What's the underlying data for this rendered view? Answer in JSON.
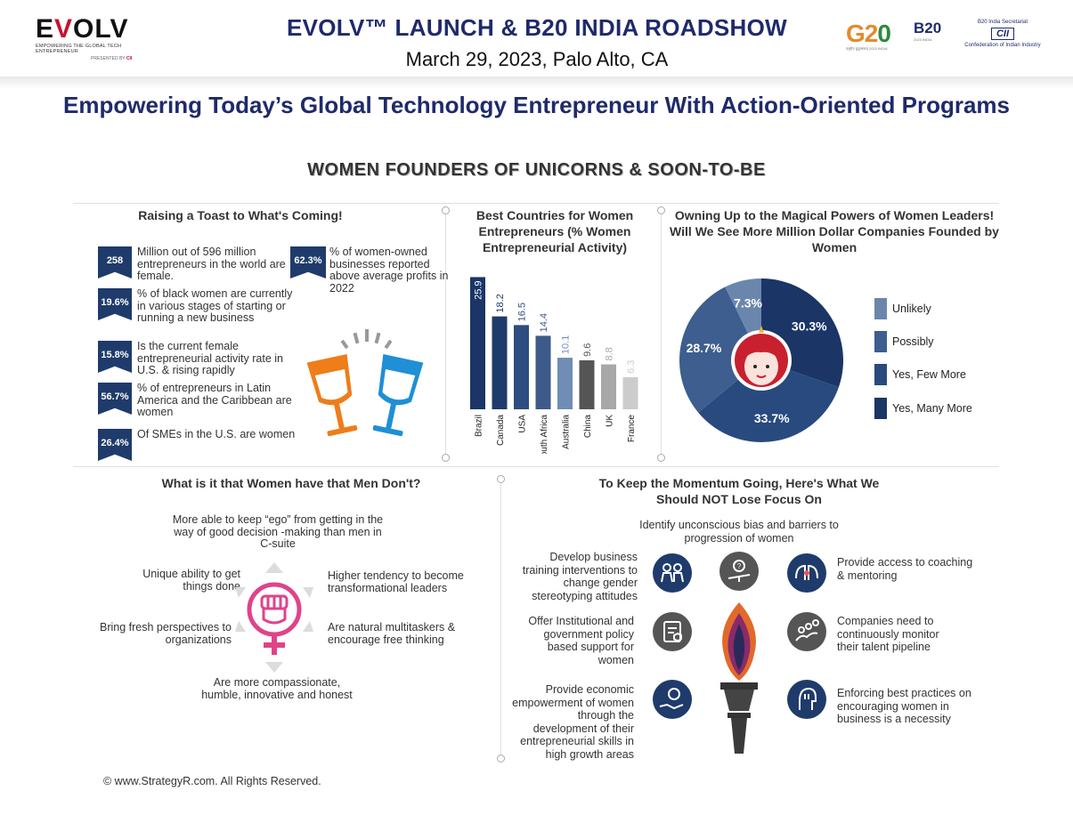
{
  "header": {
    "logo_text": "EVOLV",
    "logo_tagline": "EMPOWERING THE GLOBAL TECH ENTREPRENEUR",
    "logo_presented_by": "PRESENTED BY",
    "logo_presenter": "CII",
    "title": "EVOLV™ LAUNCH & B20 INDIA ROADSHOW",
    "date": "March 29, 2023, Palo Alto, CA",
    "g20_logo": "G20",
    "b20_logo": "B20",
    "cii_top": "B20 India Secretariat",
    "cii_logo": "CII",
    "cii_bottom": "Confederation of Indian Industry"
  },
  "subtitle": "Empowering Today’s Global Technology Entrepreneur With Action-Oriented Programs",
  "infographic_title": "WOMEN FOUNDERS OF UNICORNS & SOON-TO-BE",
  "toast": {
    "heading": "Raising a Toast to What's Coming!",
    "stats": [
      {
        "value": "258",
        "text": "Million out of 596 million entrepreneurs in the world are female."
      },
      {
        "value": "19.6%",
        "text": "% of black women are currently in various stages of starting or running a new business"
      },
      {
        "value": "15.8%",
        "text": "Is the current female entrepreneurial activity rate in U.S. & rising rapidly"
      },
      {
        "value": "56.7%",
        "text": "% of entrepreneurs in Latin America and the Caribbean are women"
      },
      {
        "value": "26.4%",
        "text": "Of SMEs in the U.S. are women"
      }
    ],
    "side_stat": {
      "value": "62.3%",
      "text": "% of women-owned businesses reported above average profits in 2022"
    },
    "icon": "toasting-glasses-icon"
  },
  "chart_data": [
    {
      "type": "bar",
      "title": "Best Countries for Women Entrepreneurs (% Women Entrepreneurial Activity)",
      "categories": [
        "Brazil",
        "Canada",
        "USA",
        "South Africa",
        "Australia",
        "China",
        "UK",
        "France"
      ],
      "values": [
        25.9,
        18.2,
        16.5,
        14.4,
        10.1,
        9.6,
        8.8,
        6.3
      ],
      "value_labels": [
        "25.9",
        "18.2",
        "16.5",
        "14.4",
        "10.1",
        "9.6",
        "8.8",
        "6.3"
      ],
      "colors": [
        "#1a3566",
        "#1f3b6b",
        "#2e4d80",
        "#3d5a8a",
        "#6f8db5",
        "#555555",
        "#a8a8a8",
        "#cccccc"
      ],
      "ylim": [
        0,
        30
      ],
      "grid": false
    },
    {
      "type": "pie",
      "title": "Owning Up to the Magical Powers of Women Leaders! Will We See More Million Dollar Companies Founded by Women",
      "categories": [
        "Unlikely",
        "Possibly",
        "Yes, Few More",
        "Yes, Many More"
      ],
      "values": [
        7.3,
        28.7,
        33.7,
        30.3
      ],
      "value_labels": [
        "7.3%",
        "28.7%",
        "33.7%",
        "30.3%"
      ],
      "colors": [
        "#6b86ad",
        "#3d5e8e",
        "#284a7e",
        "#1a3566"
      ],
      "legend": "right"
    }
  ],
  "women_vs_men": {
    "heading": "What is it that Women have that Men Don't?",
    "items": {
      "top": "More able to keep “ego” from getting in the way of good decision -making than men in C-suite",
      "top_left": "Unique ability to get things done",
      "top_right": "Higher tendency to become transformational leaders",
      "bottom_left": "Bring fresh perspectives to organizations",
      "bottom_right": "Are natural multitaskers & encourage free thinking",
      "bottom": "Are more compassionate, humble, innovative and honest"
    },
    "icon": "female-fist-icon"
  },
  "momentum": {
    "heading": "To Keep the Momentum Going, Here's What We Should NOT Lose Focus On",
    "top": "Identify unconscious bias and barriers to progression of women",
    "left": [
      "Develop business training interventions to change gender stereotyping attitudes",
      "Offer Institutional and government policy based support for women",
      "Provide economic empowerment of women through the development of their entrepreneurial skills in high growth areas"
    ],
    "right": [
      "Provide access to coaching & mentoring",
      "Companies need to continuously monitor their talent pipeline",
      "Enforcing best practices on encouraging women in business is a necessity"
    ],
    "icon": "torch-icon"
  },
  "footer": "© www.StrategyR.com. All Rights Reserved."
}
